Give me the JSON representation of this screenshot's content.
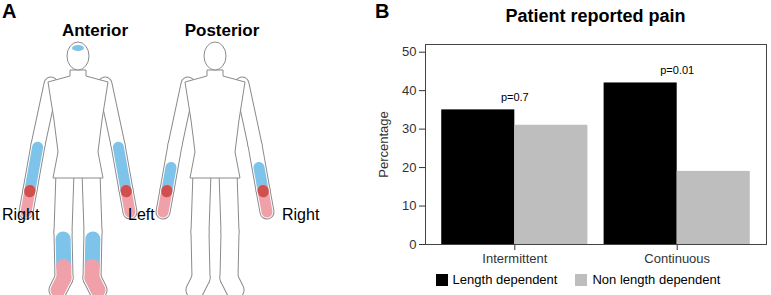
{
  "diagram": {
    "label": "A",
    "views": [
      "Anterior",
      "Posterior"
    ],
    "side_labels": [
      "Right",
      "Left",
      "Right"
    ]
  },
  "chart_data": {
    "type": "bar",
    "panel_label": "B",
    "title": "Patient reported pain",
    "y_label": "Percentage",
    "categories": [
      "Intermittent",
      "Continuous"
    ],
    "series": [
      {
        "name": "Length dependent",
        "color": "#000000",
        "values": [
          35,
          42
        ]
      },
      {
        "name": "Non length dependent",
        "color": "#bebebe",
        "values": [
          31,
          19
        ]
      }
    ],
    "ylim": [
      0,
      52
    ],
    "yticks": [
      0,
      10,
      20,
      30,
      40,
      50
    ],
    "annotations": [
      {
        "category": "Intermittent",
        "text": "p=0.7"
      },
      {
        "category": "Continuous",
        "text": "p=0.01"
      }
    ],
    "legend": "bottom",
    "grid": false
  }
}
